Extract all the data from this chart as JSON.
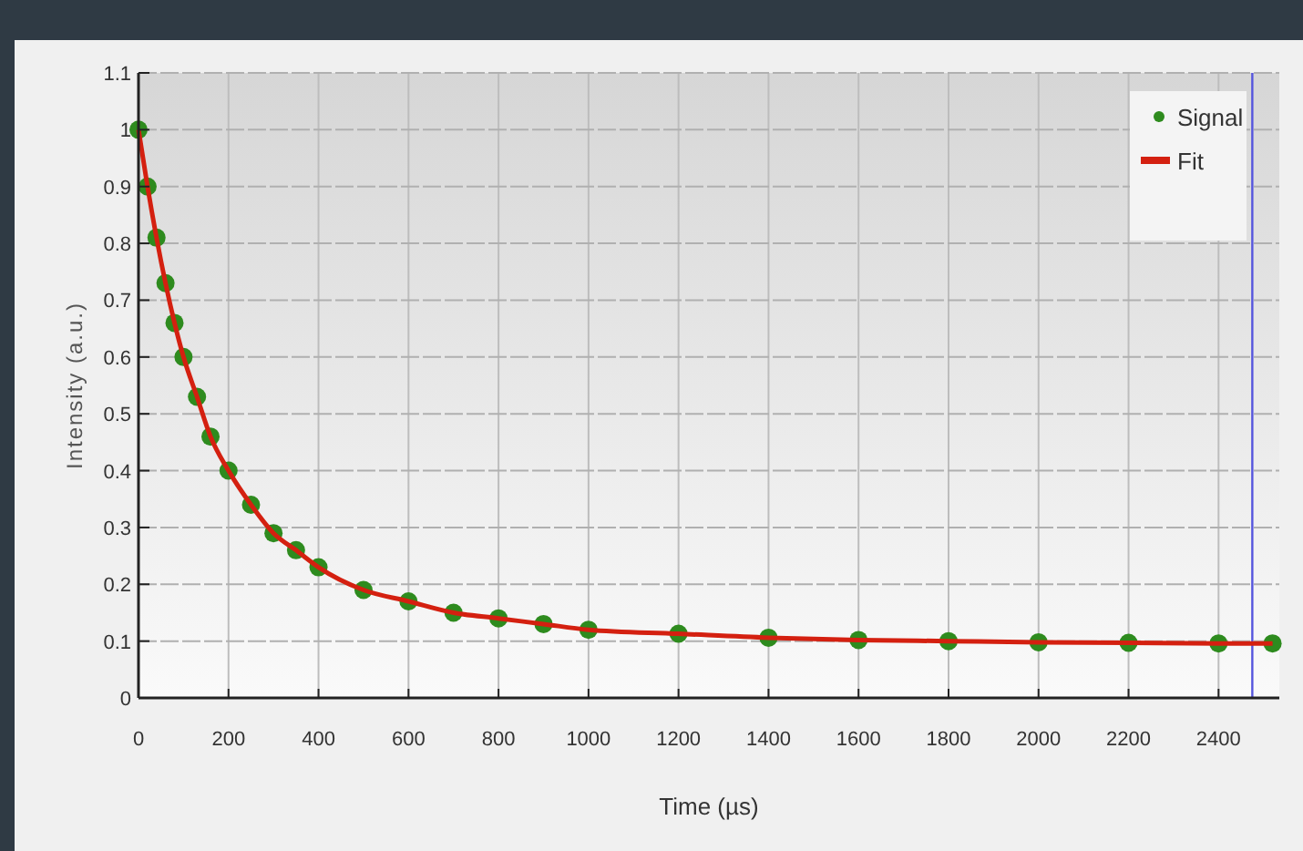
{
  "chart_data": {
    "type": "scatter",
    "xlabel": "Time (µs)",
    "ylabel": "Intensity (a.u.)",
    "xlim": [
      0,
      2535
    ],
    "ylim": [
      0,
      1.1
    ],
    "xticks": [
      0,
      200,
      400,
      600,
      800,
      1000,
      1200,
      1400,
      1600,
      1800,
      2000,
      2200,
      2400
    ],
    "yticks": [
      0,
      0.1,
      0.2,
      0.3,
      0.4,
      0.5,
      0.6,
      0.7,
      0.8,
      0.9,
      1,
      1.1
    ],
    "grid": true,
    "legend": "top right",
    "x": [
      0,
      20,
      40,
      60,
      80,
      100,
      130,
      160,
      200,
      250,
      300,
      350,
      400,
      500,
      600,
      700,
      800,
      900,
      1000,
      1200,
      1400,
      1600,
      1800,
      2000,
      2200,
      2400,
      2520
    ],
    "series": [
      {
        "name": "Signal",
        "marker": "circle",
        "color": "#2e8b1e",
        "values": [
          1.0,
          0.9,
          0.81,
          0.73,
          0.66,
          0.6,
          0.53,
          0.46,
          0.4,
          0.34,
          0.29,
          0.26,
          0.23,
          0.19,
          0.17,
          0.15,
          0.14,
          0.13,
          0.12,
          0.113,
          0.106,
          0.102,
          0.1,
          0.098,
          0.097,
          0.096,
          0.096
        ]
      },
      {
        "name": "Fit",
        "type": "line",
        "marker": "none",
        "color": "#d42010",
        "values": [
          1.0,
          0.9,
          0.81,
          0.73,
          0.66,
          0.6,
          0.53,
          0.46,
          0.4,
          0.34,
          0.29,
          0.26,
          0.23,
          0.19,
          0.17,
          0.15,
          0.14,
          0.13,
          0.12,
          0.113,
          0.106,
          0.102,
          0.1,
          0.098,
          0.097,
          0.096,
          0.096
        ]
      }
    ],
    "ref_lines": [
      {
        "axis": "x",
        "value": 2475,
        "color": "#5555dd"
      }
    ]
  }
}
